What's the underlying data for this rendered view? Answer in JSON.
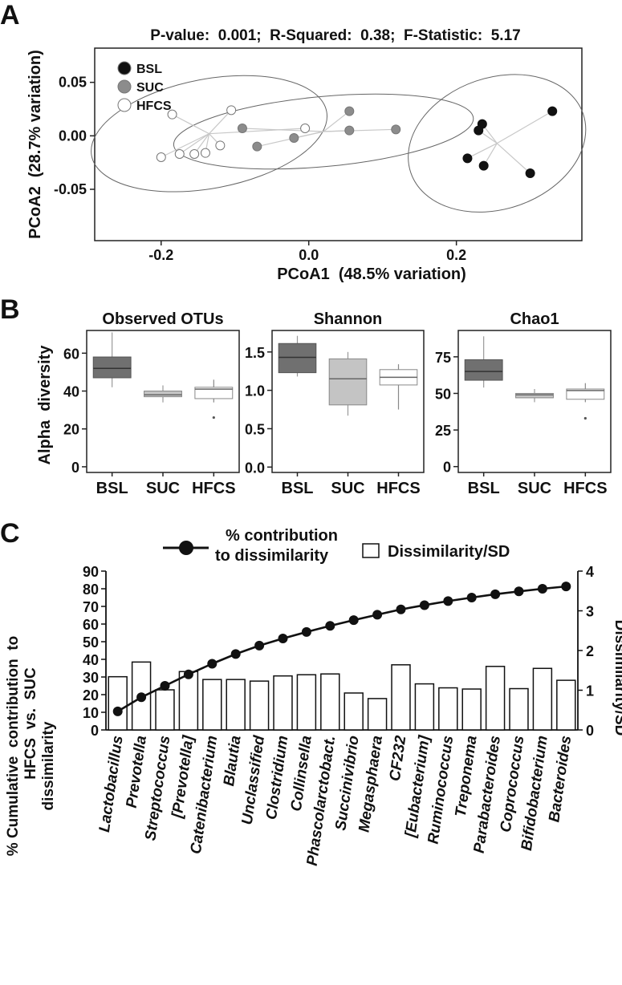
{
  "panels": {
    "a": "A",
    "b": "B",
    "c": "C"
  },
  "chart_data": [
    {
      "type": "scatter",
      "panel": "A",
      "title": "P-value:  0.001;  R-Squared:  0.38;  F-Statistic:  5.17",
      "xlabel": "PCoA1  (48.5% variation)",
      "ylabel": "PCoA2  (28.7% variation)",
      "xlim": [
        -0.29,
        0.37
      ],
      "ylim": [
        -0.098,
        0.082
      ],
      "xticks": [
        -0.2,
        0.0,
        0.2
      ],
      "xtick_labels": [
        "-0.2",
        "0.0",
        "0.2"
      ],
      "yticks": [
        0.05,
        0.0,
        -0.05
      ],
      "ytick_labels": [
        "0.05",
        "0.00",
        "-0.05"
      ],
      "legend_position": "top-left",
      "series": [
        {
          "name": "BSL",
          "color": "#111111",
          "points": [
            [
              0.235,
              0.011
            ],
            [
              0.23,
              0.005
            ],
            [
              0.33,
              0.023
            ],
            [
              0.215,
              -0.021
            ],
            [
              0.237,
              -0.028
            ],
            [
              0.3,
              -0.035
            ]
          ],
          "centroid": [
            0.255,
            -0.007
          ]
        },
        {
          "name": "SUC",
          "color": "#8c8c8c",
          "points": [
            [
              -0.09,
              0.007
            ],
            [
              -0.07,
              -0.01
            ],
            [
              -0.02,
              -0.002
            ],
            [
              0.055,
              0.023
            ],
            [
              0.055,
              0.005
            ],
            [
              0.118,
              0.006
            ]
          ],
          "centroid": [
            0.02,
            0.004
          ]
        },
        {
          "name": "HFCS",
          "color": "#ffffff",
          "points": [
            [
              -0.185,
              0.02
            ],
            [
              -0.105,
              0.024
            ],
            [
              -0.2,
              -0.02
            ],
            [
              -0.175,
              -0.017
            ],
            [
              -0.155,
              -0.017
            ],
            [
              -0.14,
              -0.016
            ],
            [
              -0.12,
              -0.009
            ],
            [
              -0.005,
              0.007
            ]
          ],
          "centroid": [
            -0.135,
            0.002
          ]
        }
      ]
    },
    {
      "type": "box",
      "panel": "B",
      "ylabel": "Alpha  diversity",
      "categories": [
        "BSL",
        "SUC",
        "HFCS"
      ],
      "facets": [
        {
          "title": "Observed  OTUs",
          "ylim": [
            -3,
            72
          ],
          "yticks": [
            0,
            20,
            40,
            60
          ],
          "ytick_labels": [
            "0",
            "20",
            "40",
            "60"
          ],
          "boxes": [
            {
              "group": "BSL",
              "min": 42,
              "q1": 47,
              "median": 52,
              "q3": 58,
              "max": 71,
              "outliers": [],
              "color": "#707070"
            },
            {
              "group": "SUC",
              "min": 34,
              "q1": 37,
              "median": 38,
              "q3": 40,
              "max": 43,
              "outliers": [],
              "color": "#c4c4c4"
            },
            {
              "group": "HFCS",
              "min": 34,
              "q1": 36,
              "median": 41,
              "q3": 42,
              "max": 46,
              "outliers": [
                26
              ],
              "color": "#ffffff"
            }
          ]
        },
        {
          "title": "Shannon",
          "ylim": [
            -0.07,
            1.78
          ],
          "yticks": [
            0.0,
            0.5,
            1.0,
            1.5
          ],
          "ytick_labels": [
            "0.0",
            "0.5",
            "1.0",
            "1.5"
          ],
          "boxes": [
            {
              "group": "BSL",
              "min": 1.18,
              "q1": 1.23,
              "median": 1.43,
              "q3": 1.61,
              "max": 1.71,
              "outliers": [],
              "color": "#707070"
            },
            {
              "group": "SUC",
              "min": 0.67,
              "q1": 0.81,
              "median": 1.15,
              "q3": 1.41,
              "max": 1.5,
              "outliers": [],
              "color": "#c4c4c4"
            },
            {
              "group": "HFCS",
              "min": 0.75,
              "q1": 1.07,
              "median": 1.17,
              "q3": 1.27,
              "max": 1.34,
              "outliers": [],
              "color": "#ffffff"
            }
          ]
        },
        {
          "title": "Chao1",
          "ylim": [
            -4,
            93
          ],
          "yticks": [
            0,
            25,
            50,
            75
          ],
          "ytick_labels": [
            "0",
            "25",
            "50",
            "75"
          ],
          "boxes": [
            {
              "group": "BSL",
              "min": 54,
              "q1": 59,
              "median": 65,
              "q3": 73,
              "max": 89,
              "outliers": [],
              "color": "#707070"
            },
            {
              "group": "SUC",
              "min": 44,
              "q1": 47,
              "median": 49,
              "q3": 50,
              "max": 53,
              "outliers": [],
              "color": "#c4c4c4"
            },
            {
              "group": "HFCS",
              "min": 44,
              "q1": 46,
              "median": 52,
              "q3": 53,
              "max": 57,
              "outliers": [
                33
              ],
              "color": "#ffffff"
            }
          ]
        }
      ]
    },
    {
      "type": "bar+line",
      "panel": "C",
      "ylabel_left": [
        "% Cumulative  contribution  to",
        "HFCS  vs.  SUC",
        "dissimilarity"
      ],
      "ylabel_right": "Dissimilarity/SD",
      "ylim_left": [
        0,
        90
      ],
      "yticks_left": [
        0,
        10,
        20,
        30,
        40,
        50,
        60,
        70,
        80,
        90
      ],
      "ylim_right": [
        0,
        4
      ],
      "yticks_right": [
        0,
        1,
        2,
        3,
        4
      ],
      "legend": {
        "line_label": [
          "% contribution",
          "to dissimilarity"
        ],
        "bar_label": "Dissimilarity/SD"
      },
      "categories": [
        "Lactobacillus",
        "Prevotella",
        "Streptococcus",
        "[Prevotella]",
        "Catenibacterium",
        "Blautia",
        "Unclassified",
        "Clostridium",
        "Collinsella",
        "Phascolarctobact.",
        "Succinivibrio",
        "Megasphaera",
        "CF232",
        "[Eubacterium]",
        "Ruminococcus",
        "Treponema",
        "Parabacteroides",
        "Coprococcus",
        "Bifidobacterium",
        "Bacteroides"
      ],
      "series": [
        {
          "name": "% contribution to dissimilarity",
          "axis": "left",
          "kind": "line",
          "values": [
            10.5,
            18.5,
            25.0,
            31.5,
            37.5,
            43.0,
            47.8,
            51.8,
            55.5,
            59.0,
            62.2,
            65.3,
            68.3,
            70.7,
            73.0,
            75.0,
            76.9,
            78.5,
            80.0,
            81.3
          ]
        },
        {
          "name": "Dissimilarity/SD",
          "axis": "right",
          "kind": "bar",
          "values": [
            1.34,
            1.71,
            1.01,
            1.47,
            1.27,
            1.27,
            1.23,
            1.36,
            1.39,
            1.41,
            0.93,
            0.79,
            1.64,
            1.16,
            1.06,
            1.03,
            1.6,
            1.04,
            1.55,
            1.25
          ]
        }
      ]
    }
  ]
}
